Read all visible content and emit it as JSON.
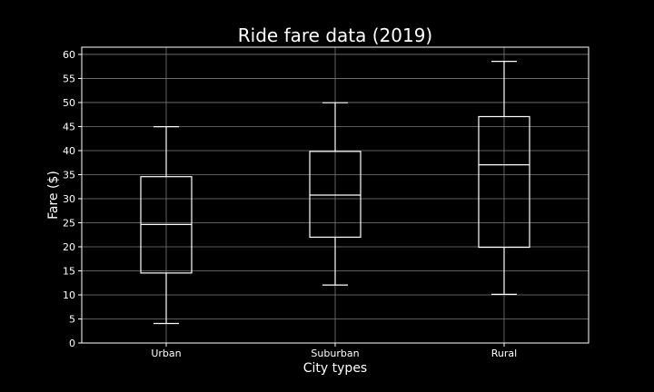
{
  "chart_data": {
    "type": "box",
    "title": "Ride fare data (2019)",
    "xlabel": "City types",
    "ylabel": "Fare ($)",
    "ylim": [
      0,
      61.5
    ],
    "yticks": [
      0,
      5,
      10,
      15,
      20,
      25,
      30,
      35,
      40,
      45,
      50,
      55,
      60
    ],
    "grid": true,
    "categories": [
      "Urban",
      "Suburban",
      "Rural"
    ],
    "boxes": [
      {
        "category": "Urban",
        "whisker_low": 4.05,
        "q1": 14.55,
        "median": 24.64,
        "q3": 34.58,
        "whisker_high": 44.97
      },
      {
        "category": "Suburban",
        "whisker_low": 12.05,
        "q1": 22.0,
        "median": 30.75,
        "q3": 39.83,
        "whisker_high": 49.96
      },
      {
        "category": "Rural",
        "whisker_low": 10.11,
        "q1": 19.9,
        "median": 37.05,
        "q3": 47.07,
        "whisker_high": 58.55
      }
    ],
    "colors": {
      "background": "#000000",
      "box": "#ffffff",
      "grid": "#7a7a7a",
      "text": "#ffffff"
    }
  }
}
